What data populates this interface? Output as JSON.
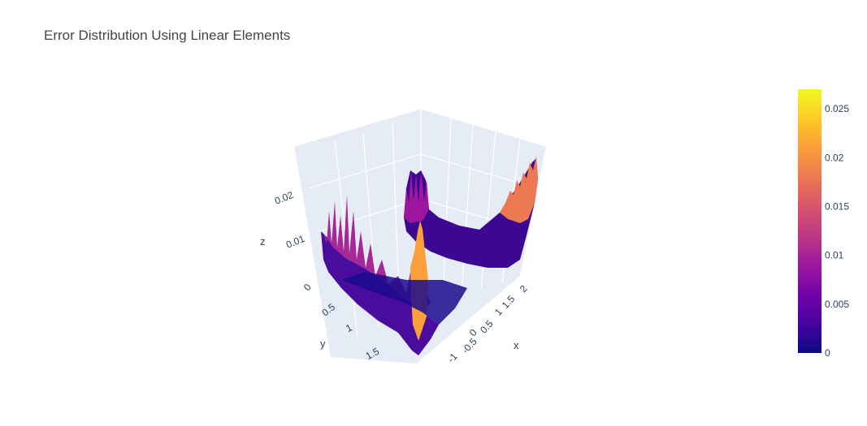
{
  "chart_data": {
    "type": "surface",
    "title": "Error Distribution Using Linear Elements",
    "xlabel": "x",
    "ylabel": "y",
    "zlabel": "z",
    "x_ticks": [
      "-1",
      "-0.5",
      "0",
      "0.5",
      "1",
      "1.5",
      "2"
    ],
    "y_ticks": [
      "0",
      "0.5",
      "1",
      "1.5"
    ],
    "z_ticks": [
      "0.01",
      "0.02"
    ],
    "xlim": [
      -1.2,
      2.2
    ],
    "ylim": [
      -0.2,
      2.2
    ],
    "zlim": [
      0,
      0.027
    ],
    "colorscale": "Plasma",
    "colorbar": {
      "ticks": [
        "0",
        "0.005",
        "0.01",
        "0.015",
        "0.02",
        "0.025"
      ],
      "min": 0,
      "max": 0.027
    },
    "surface_description": "error magnitude over an L-shaped domain; near-zero in the interior, spiky ridges along boundaries, peak ~0.027 at x≈2 edge and ~0.02 near the re-entrant corner"
  },
  "colors": {
    "scene_bg": "#e5ecf6",
    "grid": "#ffffff",
    "text": "#2a3f5f",
    "title": "#444444"
  }
}
